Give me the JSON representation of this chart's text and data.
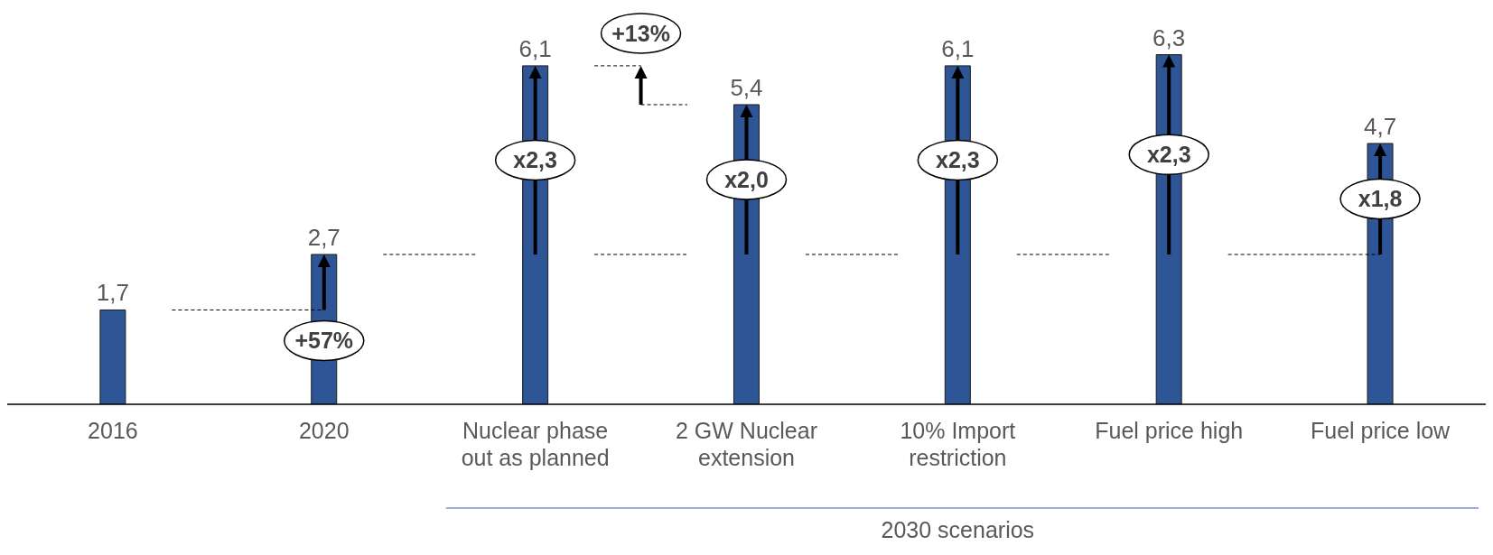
{
  "chart_data": {
    "type": "bar",
    "categories": [
      "2016",
      "2020",
      "Nuclear phase out as planned",
      "2 GW Nuclear extension",
      "10% Import restriction",
      "Fuel price high",
      "Fuel price low"
    ],
    "values": [
      1.7,
      2.7,
      6.1,
      5.4,
      6.1,
      6.3,
      4.7
    ],
    "value_labels": [
      "1,7",
      "2,7",
      "6,1",
      "5,4",
      "6,1",
      "6,3",
      "4,7"
    ],
    "color": "#2e5596",
    "grid": false,
    "legend": false,
    "annotations": [
      "+57%",
      "+13%",
      "x2,3",
      "x2,0",
      "x2,3",
      "x2,3",
      "x1,8",
      "2030 scenarios"
    ]
  }
}
